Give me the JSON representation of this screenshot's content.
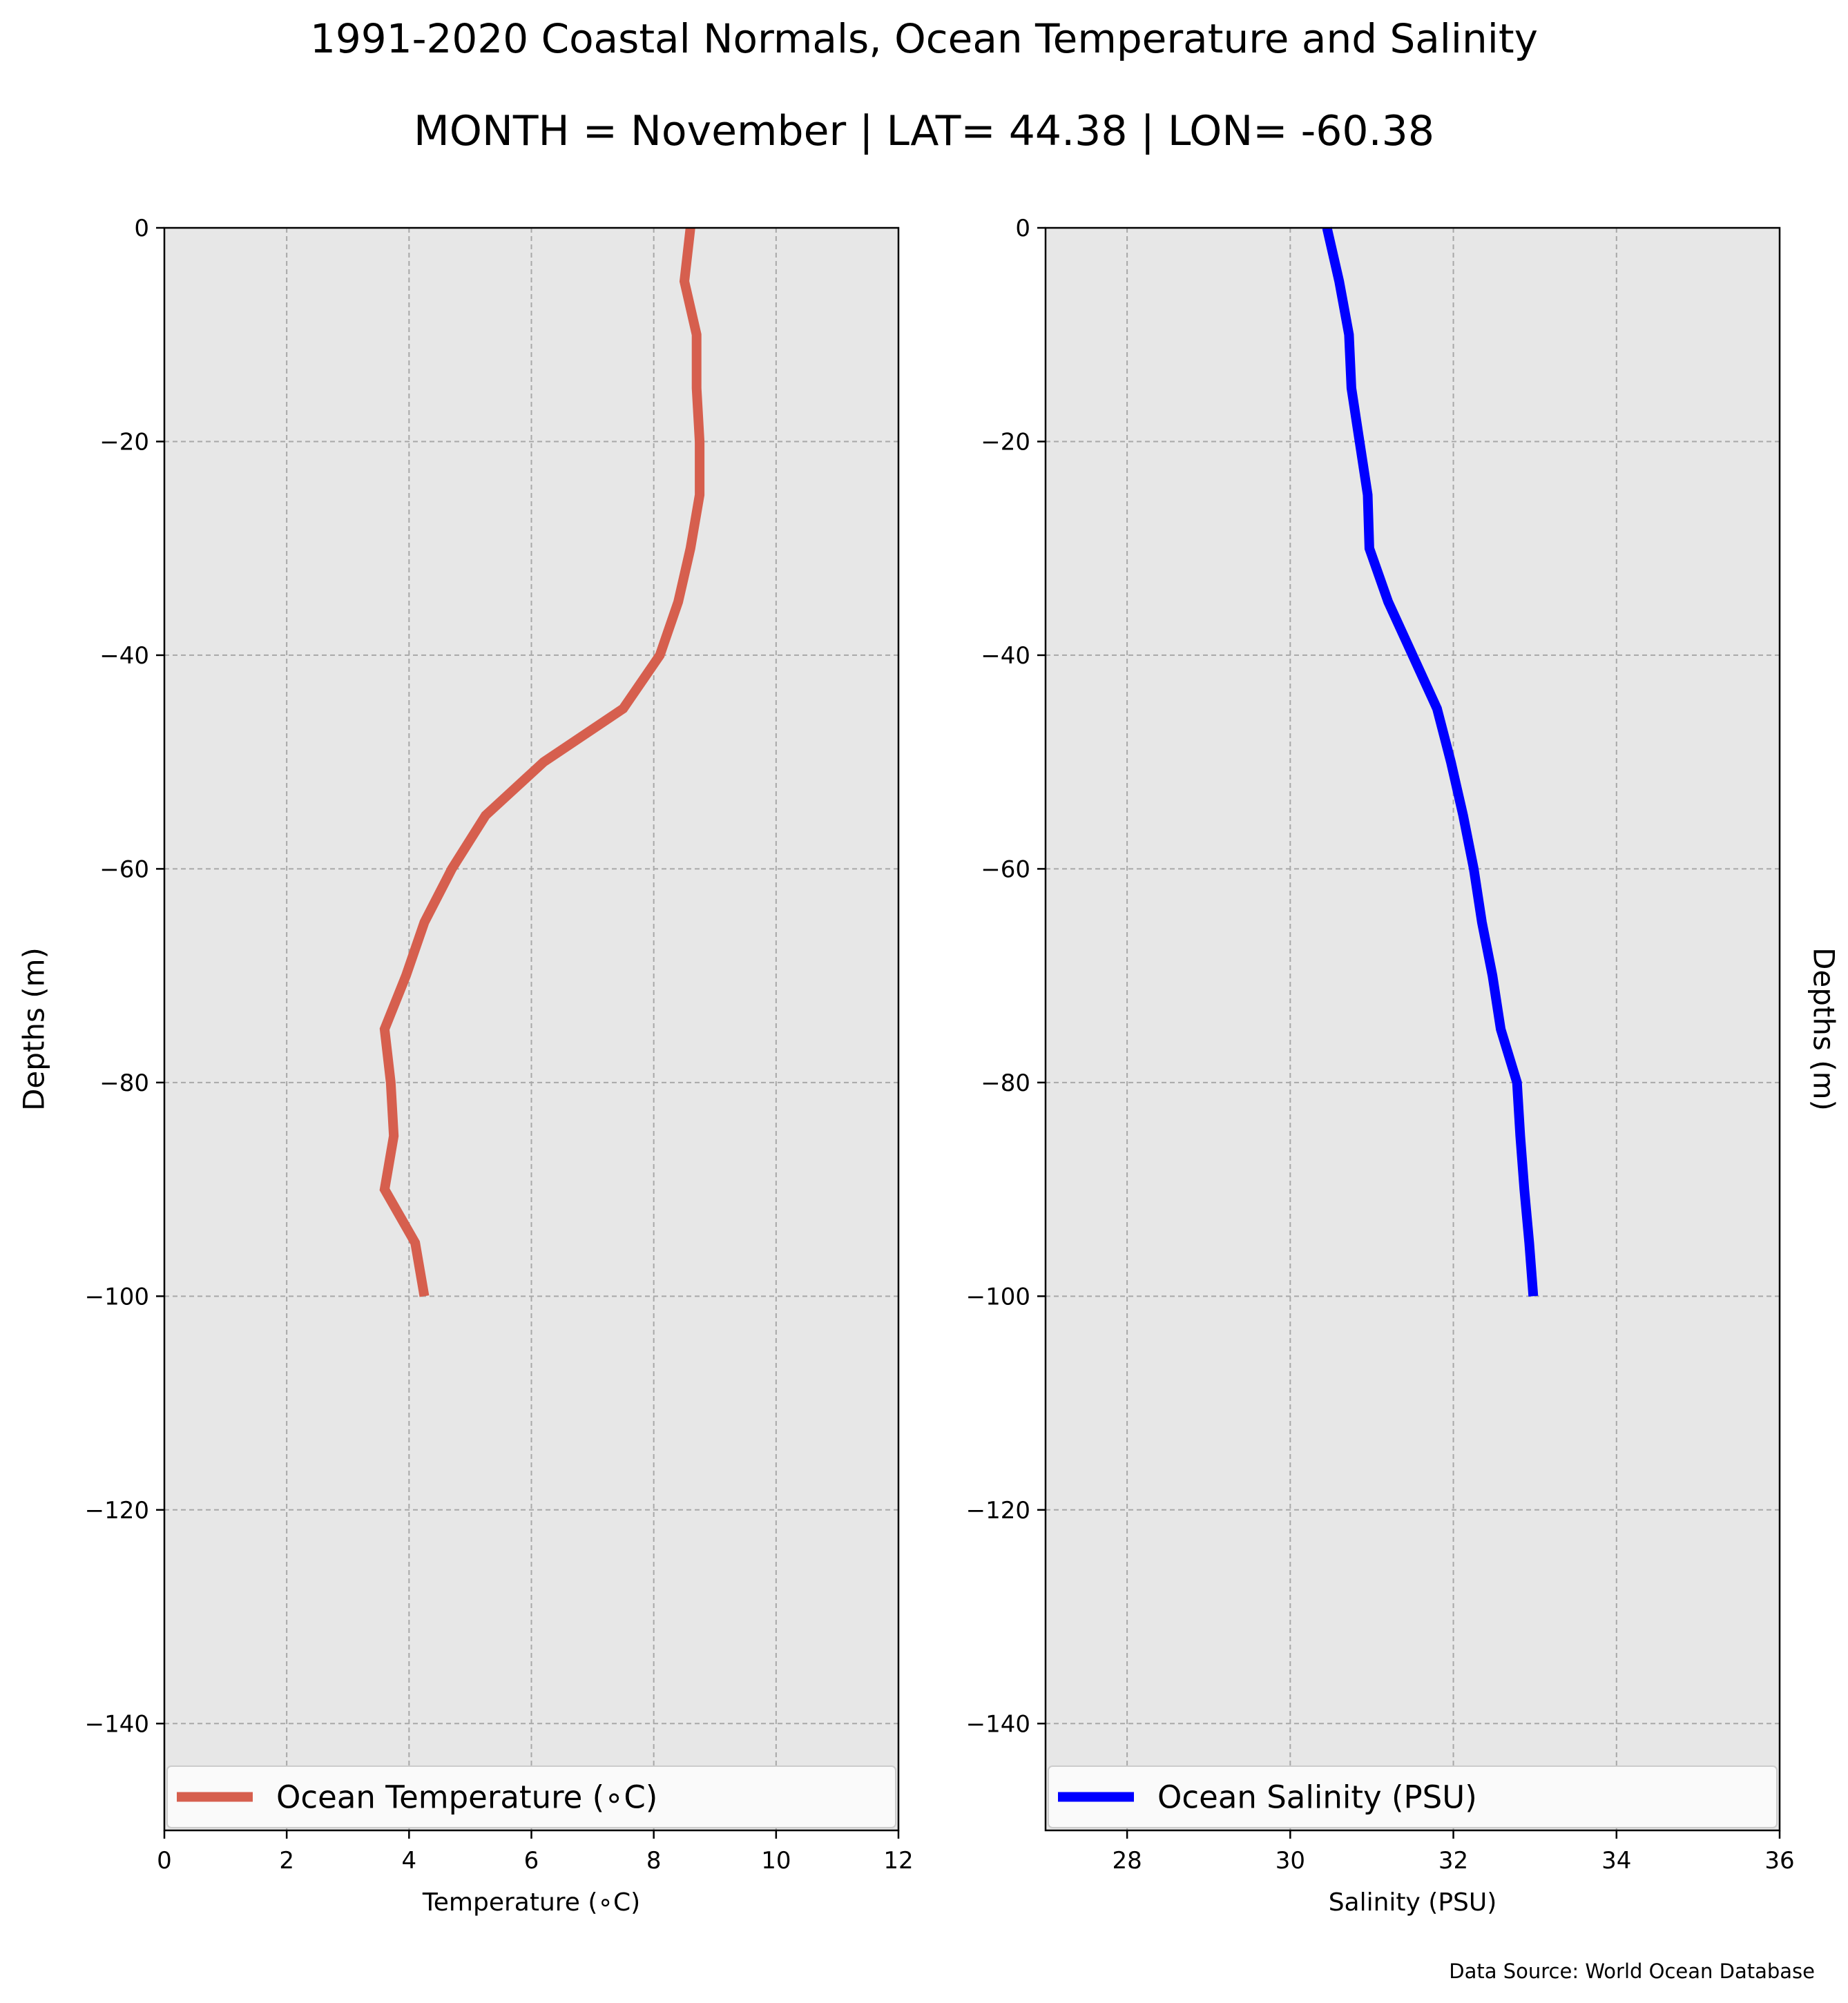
{
  "figure": {
    "title": "1991-2020 Coastal Normals, Ocean Temperature and Salinity",
    "subtitle": "MONTH = November | LAT= 44.38 | LON= -60.38",
    "source": "Data Source: World Ocean Database"
  },
  "chart_data": [
    {
      "type": "line",
      "panel": "left",
      "xlabel": "Temperature (∘C)",
      "ylabel": "Depths (m)",
      "xlim": [
        0,
        12
      ],
      "ylim": [
        -150,
        0
      ],
      "xticks": [
        0,
        2,
        4,
        6,
        8,
        10,
        12
      ],
      "yticks": [
        0,
        -20,
        -40,
        -60,
        -80,
        -100,
        -120,
        -140
      ],
      "grid": true,
      "legend_position": "bottom",
      "series": [
        {
          "name": "Ocean Temperature (∘C)",
          "color": "#d65f4e",
          "x": [
            8.6,
            8.5,
            8.7,
            8.7,
            8.75,
            8.75,
            8.6,
            8.4,
            8.1,
            7.5,
            6.2,
            5.25,
            4.7,
            4.25,
            3.95,
            3.6,
            3.7,
            3.75,
            3.6,
            4.1,
            4.25
          ],
          "y": [
            0,
            -5,
            -10,
            -15,
            -20,
            -25,
            -30,
            -35,
            -40,
            -45,
            -50,
            -55,
            -60,
            -65,
            -70,
            -75,
            -80,
            -85,
            -90,
            -95,
            -100
          ]
        }
      ]
    },
    {
      "type": "line",
      "panel": "right",
      "xlabel": "Salinity (PSU)",
      "ylabel": "Depths (m)",
      "xlim": [
        27,
        36
      ],
      "ylim": [
        -150,
        0
      ],
      "xticks": [
        28,
        30,
        32,
        34,
        36
      ],
      "yticks": [
        0,
        -20,
        -40,
        -60,
        -80,
        -100,
        -120,
        -140
      ],
      "grid": true,
      "legend_position": "bottom",
      "series": [
        {
          "name": "Ocean Salinity (PSU)",
          "color": "#0000ff",
          "x": [
            30.45,
            30.6,
            30.72,
            30.75,
            30.85,
            30.95,
            30.97,
            31.2,
            31.5,
            31.8,
            31.97,
            32.12,
            32.25,
            32.35,
            32.48,
            32.58,
            32.78,
            32.82,
            32.87,
            32.93,
            32.98
          ],
          "y": [
            0,
            -5,
            -10,
            -15,
            -20,
            -25,
            -30,
            -35,
            -40,
            -45,
            -50,
            -55,
            -60,
            -65,
            -70,
            -75,
            -80,
            -85,
            -90,
            -95,
            -100
          ]
        }
      ]
    }
  ]
}
